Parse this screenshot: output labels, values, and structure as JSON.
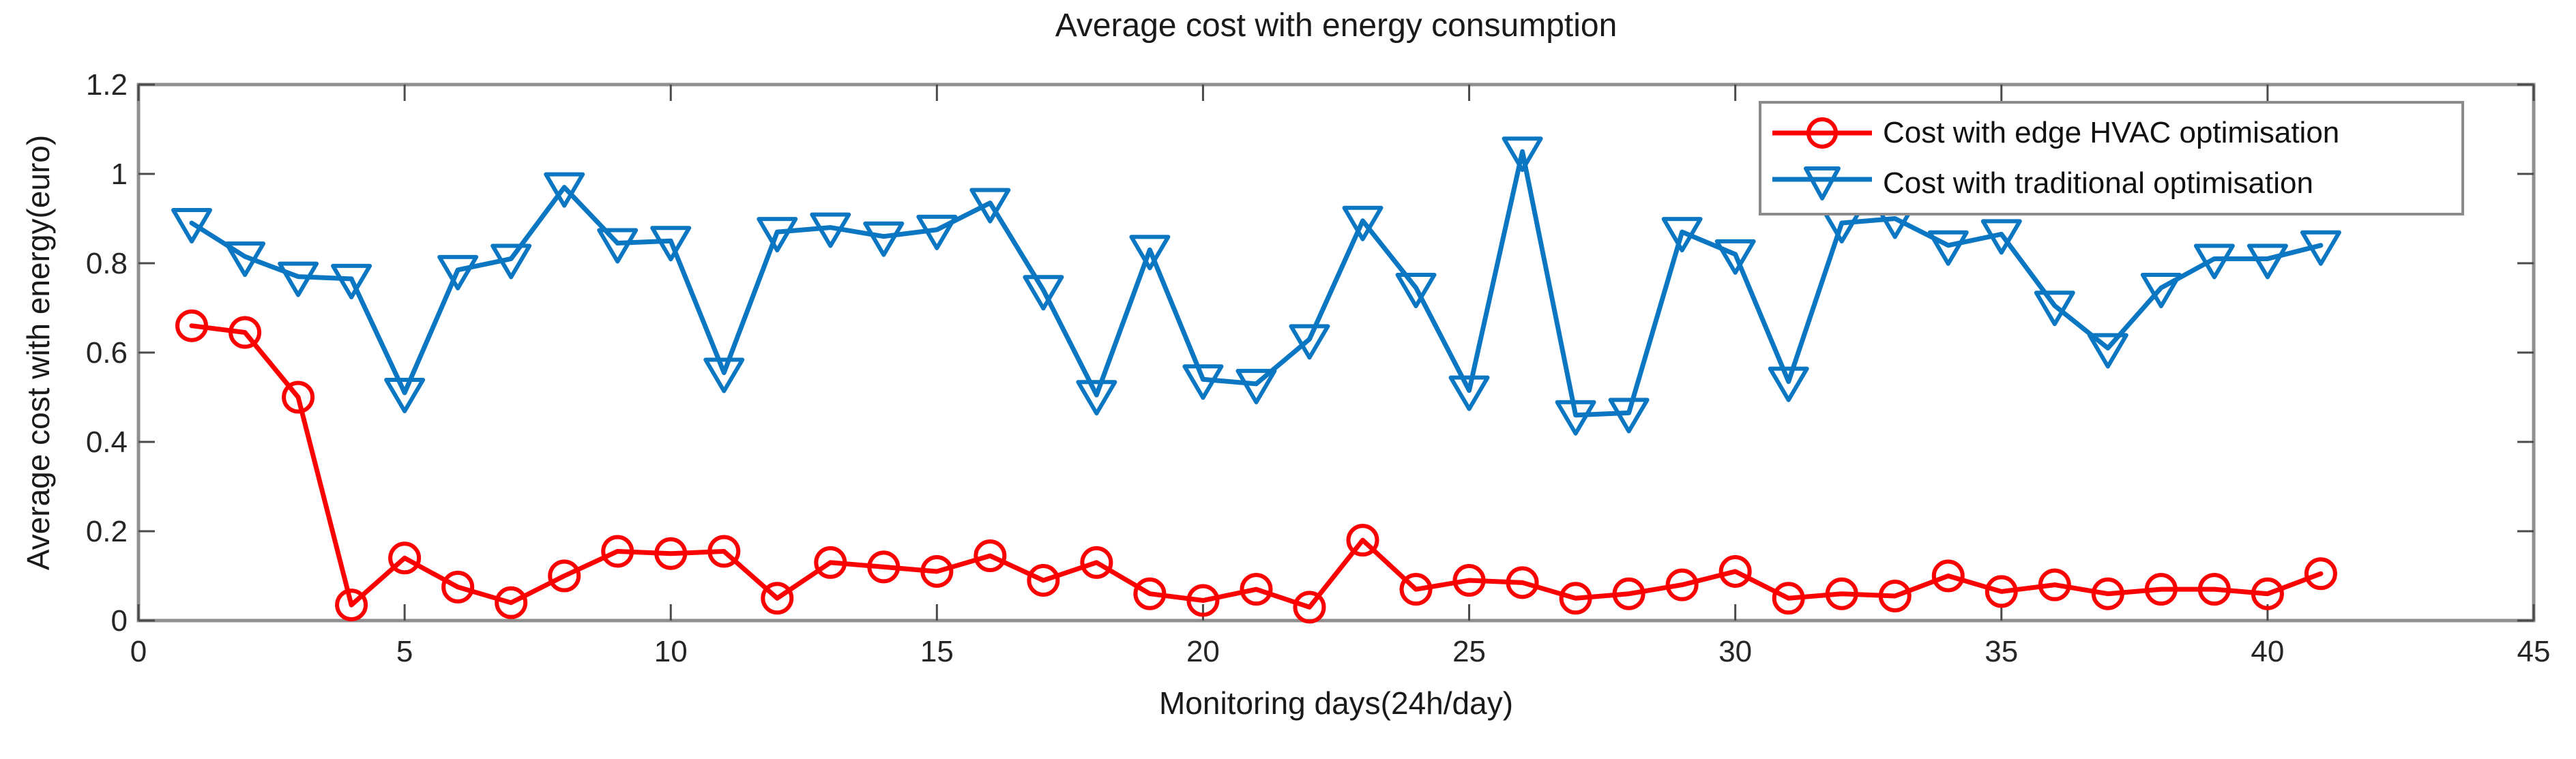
{
  "chart_data": {
    "type": "line",
    "title": "Average cost with energy consumption",
    "xlabel": "Monitoring days(24h/day)",
    "ylabel": "Average cost with energy(euro)",
    "xlim": [
      0,
      45
    ],
    "ylim": [
      0,
      1.2
    ],
    "xticks": [
      0,
      5,
      10,
      15,
      20,
      25,
      30,
      35,
      40,
      45
    ],
    "yticks": [
      0,
      0.2,
      0.4,
      0.6,
      0.8,
      1,
      1.2
    ],
    "ytick_labels": [
      "0",
      "0.2",
      "0.4",
      "0.6",
      "0.8",
      "1",
      "1.2"
    ],
    "grid": false,
    "legend_position": "top-right",
    "frame_color": "#8f8f8f",
    "tick_color": "#4a4a4a",
    "tick_label_color": "#262626",
    "x": [
      1,
      2,
      3,
      4,
      5,
      6,
      7,
      8,
      9,
      10,
      11,
      12,
      13,
      14,
      15,
      16,
      17,
      18,
      19,
      20,
      21,
      22,
      23,
      24,
      25,
      26,
      27,
      28,
      29,
      30,
      31,
      32,
      33,
      34,
      35,
      36,
      37,
      38,
      39,
      40,
      41
    ],
    "series": [
      {
        "name": "Cost with edge HVAC optimisation",
        "color": "#fa0000",
        "marker": "circle",
        "values": [
          0.66,
          0.645,
          0.5,
          0.035,
          0.14,
          0.075,
          0.04,
          0.1,
          0.155,
          0.15,
          0.155,
          0.05,
          0.13,
          0.12,
          0.11,
          0.145,
          0.09,
          0.13,
          0.06,
          0.045,
          0.07,
          0.03,
          0.18,
          0.07,
          0.09,
          0.085,
          0.05,
          0.06,
          0.08,
          0.11,
          0.05,
          0.06,
          0.055,
          0.1,
          0.065,
          0.08,
          0.06,
          0.07,
          0.07,
          0.06,
          0.105
        ]
      },
      {
        "name": "Cost with traditional optimisation",
        "color": "#0b76c2",
        "marker": "triangle-down",
        "values": [
          0.89,
          0.815,
          0.77,
          0.765,
          0.51,
          0.785,
          0.81,
          0.97,
          0.845,
          0.85,
          0.555,
          0.87,
          0.88,
          0.86,
          0.875,
          0.935,
          0.74,
          0.505,
          0.83,
          0.54,
          0.53,
          0.63,
          0.895,
          0.745,
          0.515,
          1.05,
          0.46,
          0.465,
          0.87,
          0.82,
          0.535,
          0.89,
          0.9,
          0.84,
          0.865,
          0.705,
          0.61,
          0.745,
          0.81,
          0.81,
          0.84
        ]
      }
    ]
  }
}
